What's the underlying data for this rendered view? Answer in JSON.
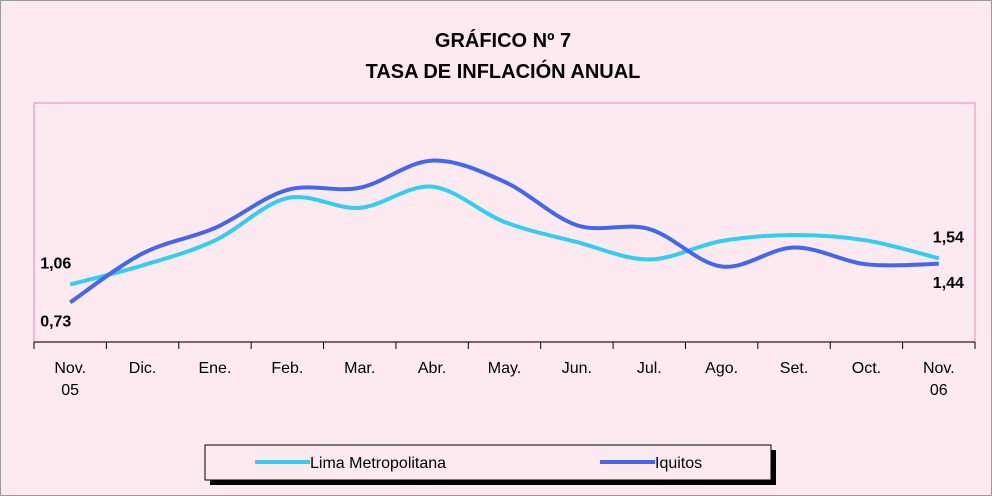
{
  "chart_data": {
    "type": "line",
    "title": "GRÁFICO Nº 7",
    "subtitle": "TASA DE INFLACIÓN ANUAL",
    "categories": [
      "Nov.\n05",
      "Dic.",
      "Ene.",
      "Feb.",
      "Mar.",
      "Abr.",
      "May.",
      "Jun.",
      "Jul.",
      "Ago.",
      "Set.",
      "Oct.",
      "Nov.\n06"
    ],
    "ylim": [
      0,
      4.4
    ],
    "series": [
      {
        "name": "Lima Metropolitana",
        "color": "#33ccf5",
        "values": [
          1.06,
          1.41,
          1.87,
          2.65,
          2.47,
          2.86,
          2.21,
          1.84,
          1.52,
          1.86,
          1.97,
          1.87,
          1.54
        ],
        "value_labels": [
          "1,06",
          null,
          null,
          null,
          null,
          null,
          null,
          null,
          null,
          null,
          null,
          null,
          "1,54"
        ]
      },
      {
        "name": "Iquitos",
        "color": "#4466ee",
        "values": [
          0.73,
          1.63,
          2.1,
          2.8,
          2.84,
          3.34,
          2.95,
          2.15,
          2.08,
          1.39,
          1.74,
          1.43,
          1.44
        ],
        "value_labels": [
          "0,73",
          null,
          null,
          null,
          null,
          null,
          null,
          null,
          null,
          null,
          null,
          null,
          "1,44"
        ]
      }
    ]
  }
}
